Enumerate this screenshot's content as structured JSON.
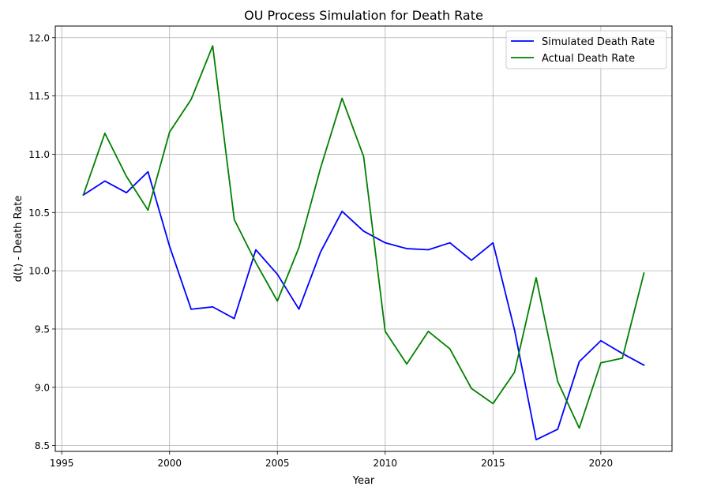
{
  "chart_data": {
    "type": "line",
    "title": "OU Process Simulation for Death Rate",
    "xlabel": "Year",
    "ylabel": "d(t) - Death Rate",
    "xlim": [
      1994.7,
      2023.3
    ],
    "ylim": [
      8.45,
      12.1
    ],
    "grid": true,
    "legend_position": "top-right",
    "x_ticks": [
      1995,
      2000,
      2005,
      2010,
      2015,
      2020
    ],
    "y_ticks": [
      8.5,
      9.0,
      9.5,
      10.0,
      10.5,
      11.0,
      11.5,
      12.0
    ],
    "x_tick_labels": [
      "1995",
      "2000",
      "2005",
      "2010",
      "2015",
      "2020"
    ],
    "y_tick_labels": [
      "8.5",
      "9.0",
      "9.5",
      "10.0",
      "10.5",
      "11.0",
      "11.5",
      "12.0"
    ],
    "x": [
      1996,
      1997,
      1998,
      1999,
      2000,
      2001,
      2002,
      2003,
      2004,
      2005,
      2006,
      2007,
      2008,
      2009,
      2010,
      2011,
      2012,
      2013,
      2014,
      2015,
      2016,
      2017,
      2018,
      2019,
      2020,
      2021,
      2022
    ],
    "series": [
      {
        "name": "Simulated Death Rate",
        "color": "#0000ff",
        "values": [
          10.65,
          10.77,
          10.67,
          10.85,
          10.21,
          9.67,
          9.69,
          9.59,
          10.18,
          9.97,
          9.67,
          10.16,
          10.51,
          10.34,
          10.24,
          10.19,
          10.18,
          10.24,
          10.09,
          10.24,
          9.49,
          8.55,
          8.64,
          9.22,
          9.4,
          9.29,
          9.19
        ]
      },
      {
        "name": "Actual Death Rate",
        "color": "#008000",
        "values": [
          10.65,
          11.18,
          10.81,
          10.52,
          11.19,
          11.47,
          11.93,
          10.44,
          10.07,
          9.74,
          10.2,
          10.88,
          11.48,
          10.98,
          9.48,
          9.2,
          9.48,
          9.33,
          8.99,
          8.86,
          9.13,
          9.94,
          9.05,
          8.65,
          9.21,
          9.25,
          9.98
        ]
      }
    ]
  }
}
